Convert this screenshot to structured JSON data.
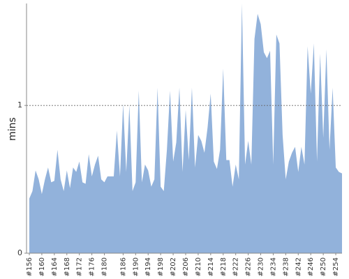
{
  "chart_data": {
    "type": "area",
    "y_label": "mins",
    "color": "#92b2db",
    "categories": [
      "#156",
      null,
      null,
      null,
      "#160",
      null,
      null,
      null,
      "#164",
      null,
      null,
      null,
      "#168",
      null,
      null,
      null,
      "#172",
      null,
      null,
      null,
      "#176",
      null,
      null,
      null,
      "#180",
      null,
      null,
      null,
      null,
      null,
      "#186",
      null,
      null,
      null,
      "#190",
      null,
      null,
      null,
      "#194",
      null,
      null,
      null,
      "#198",
      null,
      null,
      null,
      "#202",
      null,
      null,
      null,
      "#206",
      null,
      null,
      null,
      "#210",
      null,
      null,
      null,
      "#214",
      null,
      null,
      null,
      "#218",
      null,
      null,
      null,
      "#222",
      null,
      null,
      null,
      "#226",
      null,
      null,
      null,
      "#230",
      null,
      null,
      null,
      "#234",
      null,
      null,
      null,
      "#238",
      null,
      null,
      null,
      "#242",
      null,
      null,
      null,
      "#246",
      null,
      null,
      null,
      "#250",
      null,
      null,
      null,
      "#254",
      null,
      null
    ],
    "values": [
      0.37,
      0.42,
      0.56,
      0.5,
      0.4,
      0.5,
      0.58,
      0.48,
      0.49,
      0.7,
      0.5,
      0.42,
      0.56,
      0.44,
      0.58,
      0.55,
      0.62,
      0.48,
      0.47,
      0.67,
      0.52,
      0.6,
      0.66,
      0.5,
      0.48,
      0.52,
      0.52,
      0.52,
      0.83,
      0.52,
      1.01,
      0.55,
      1.0,
      0.42,
      0.48,
      1.1,
      0.48,
      0.6,
      0.56,
      0.45,
      0.5,
      1.12,
      0.45,
      0.42,
      0.7,
      1.1,
      0.62,
      0.75,
      1.12,
      0.55,
      0.97,
      0.63,
      1.12,
      0.58,
      0.8,
      0.76,
      0.68,
      0.85,
      1.08,
      0.62,
      0.57,
      0.7,
      1.25,
      0.63,
      0.63,
      0.45,
      0.6,
      0.5,
      1.69,
      0.6,
      0.76,
      0.6,
      1.45,
      1.62,
      1.55,
      1.36,
      1.32,
      1.37,
      0.6,
      1.48,
      1.42,
      0.8,
      0.5,
      0.62,
      0.68,
      0.72,
      0.55,
      0.72,
      0.6,
      1.4,
      1.08,
      1.42,
      0.62,
      1.35,
      0.78,
      1.38,
      0.7,
      1.12,
      0.58,
      0.55,
      0.54
    ],
    "ylim": [
      0,
      1.69
    ],
    "yticks": [
      0,
      1
    ],
    "grid": true
  }
}
